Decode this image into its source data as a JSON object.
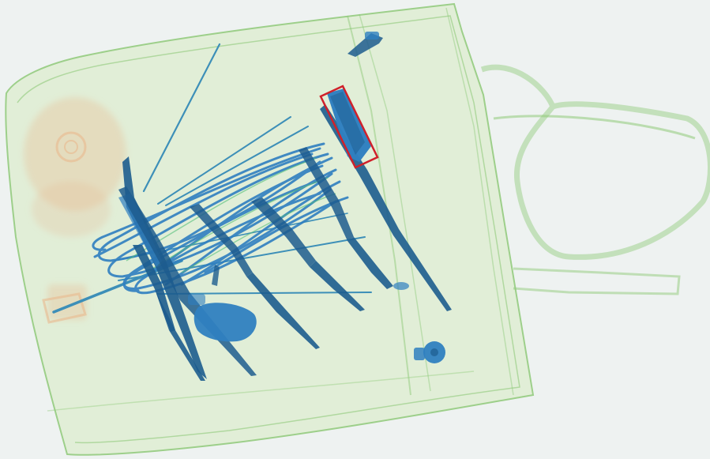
{
  "scan": {
    "background_color": "#eef2f1",
    "bag_color": "#8fca79",
    "bag_fill_color": "#dfeed3",
    "organic_color": "#e9b98e",
    "dense_metal_color": "#1d5c8e",
    "metal_color": "#2f7fc0",
    "thin_wire_color": "#3d8fb8",
    "highlight_box_color": "#d0202a"
  }
}
